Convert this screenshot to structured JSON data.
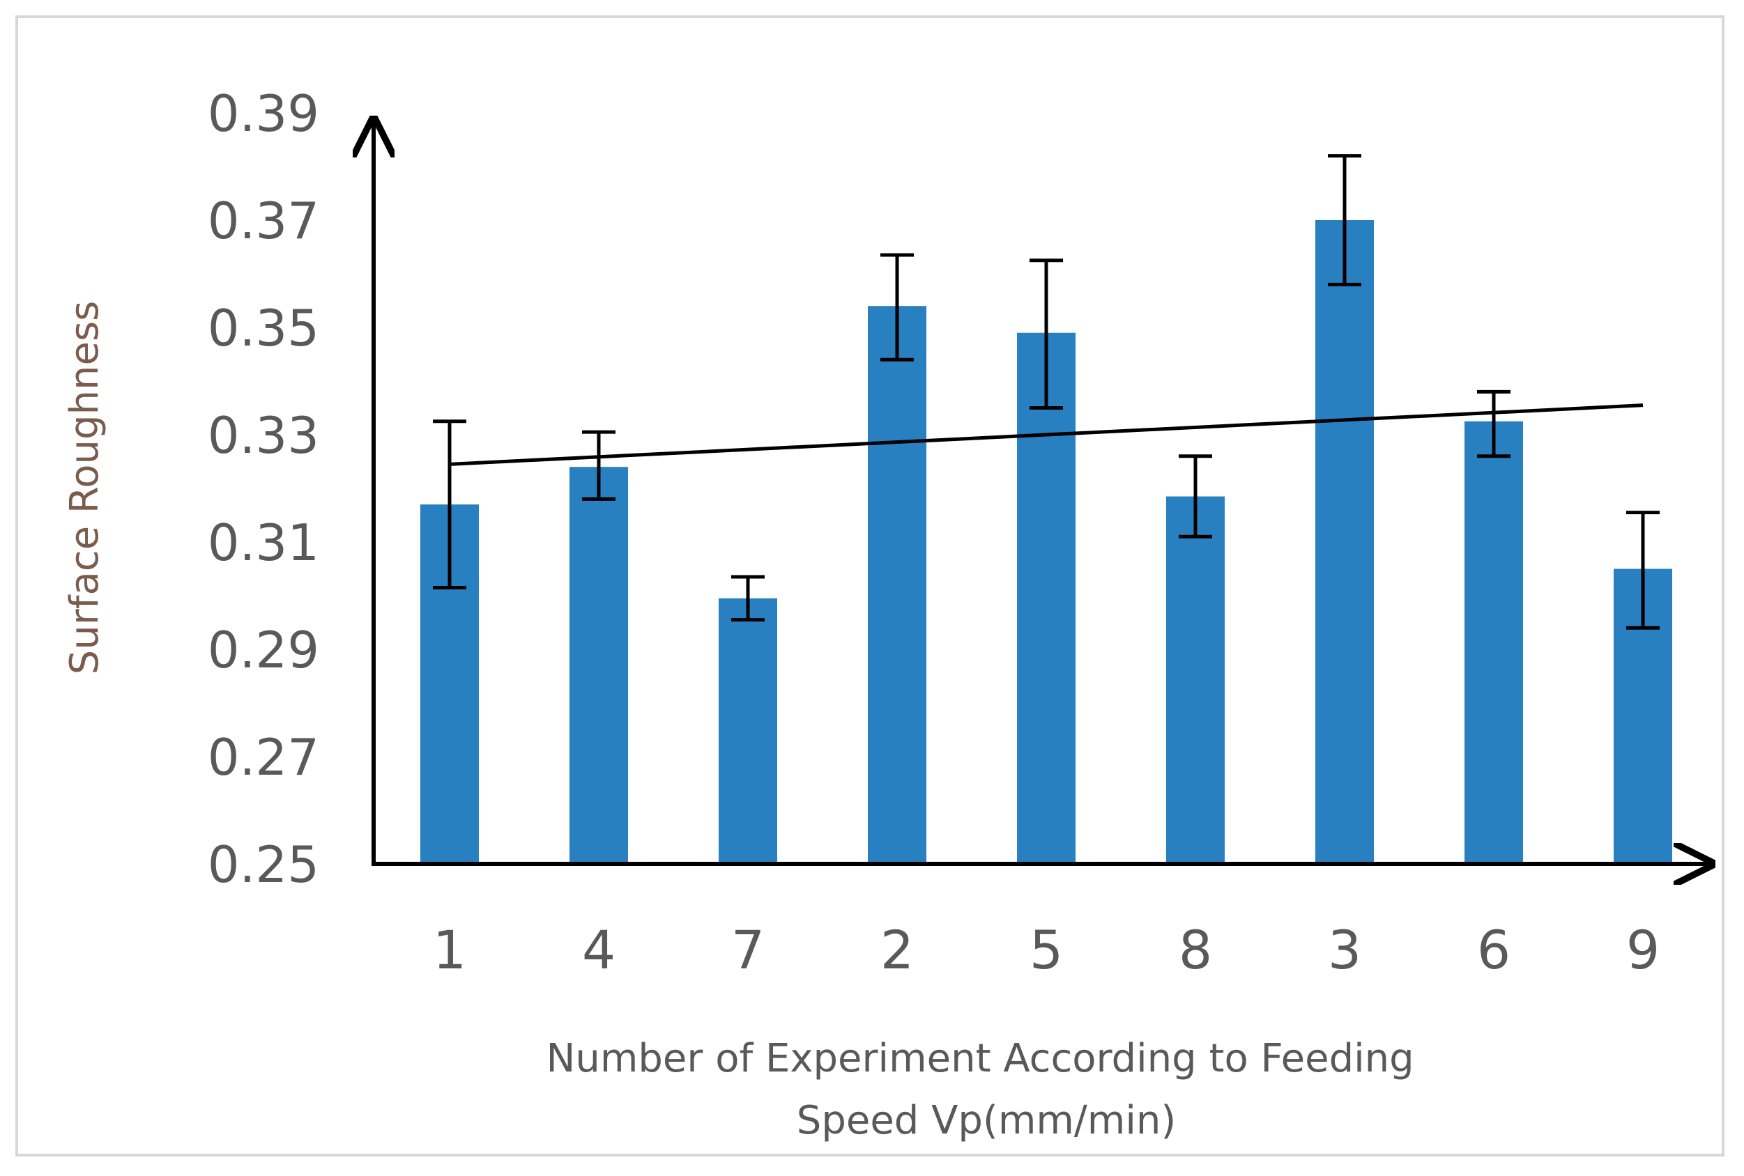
{
  "chart_data": {
    "type": "bar",
    "ylabel": "Surface Roughness",
    "xlabel_lines": [
      "Number of Experiment  According to Feeding",
      "Speed Vp(mm/min)"
    ],
    "categories": [
      "1",
      "4",
      "7",
      "2",
      "5",
      "8",
      "3",
      "6",
      "9"
    ],
    "values": [
      0.317,
      0.324,
      0.2995,
      0.354,
      0.349,
      0.3185,
      0.37,
      0.3325,
      0.305
    ],
    "error_low": [
      0.3015,
      0.318,
      0.2955,
      0.344,
      0.335,
      0.311,
      0.358,
      0.326,
      0.294
    ],
    "error_high": [
      0.3325,
      0.3305,
      0.3035,
      0.3635,
      0.3625,
      0.326,
      0.382,
      0.338,
      0.3155
    ],
    "trendline": {
      "start": 0.3245,
      "end": 0.3355
    },
    "ylim": [
      0.25,
      0.39
    ],
    "yticks": [
      "0.25",
      "0.27",
      "0.29",
      "0.31",
      "0.33",
      "0.35",
      "0.37",
      "0.39"
    ],
    "grid": false,
    "colors": {
      "bar": "#2980c1",
      "axis": "#000000",
      "error": "#000000",
      "trend": "#000000"
    }
  }
}
